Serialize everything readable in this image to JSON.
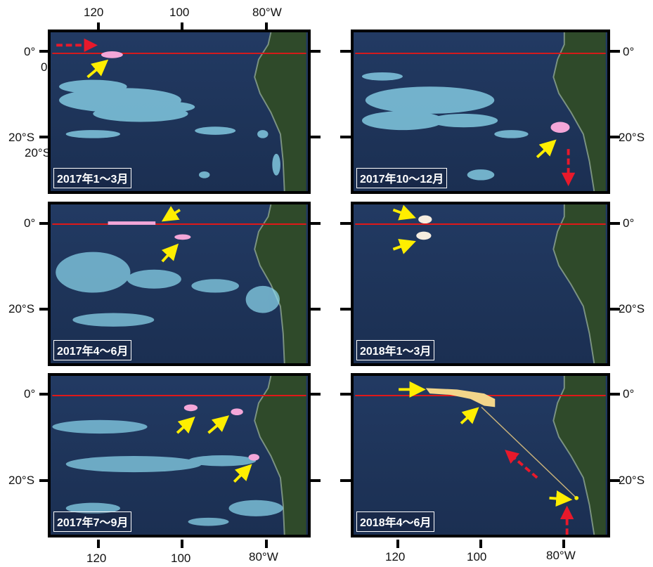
{
  "axis_labels": {
    "top": [
      "120",
      "100",
      "80°W"
    ],
    "bottom_left": [
      "120",
      "100",
      "80°W"
    ],
    "bottom_right": [
      "120",
      "100",
      "80°W"
    ],
    "left": [
      "0°",
      "0",
      "20°S",
      "20°S",
      "0°",
      "20°S",
      "0°",
      "20°S"
    ],
    "right": [
      "0°",
      "20°S",
      "0°",
      "20°S",
      "0°",
      "20°S"
    ]
  },
  "panels": [
    {
      "label": "2017年1～3月"
    },
    {
      "label": "2017年10～12月"
    },
    {
      "label": "2017年4～6月"
    },
    {
      "label": "2018年1～3月"
    },
    {
      "label": "2017年7～9月"
    },
    {
      "label": "2018年4～6月"
    }
  ],
  "colors": {
    "ocean": "#1f3559",
    "land": "#2f4a2a",
    "equator_line": "#e01818",
    "bloom": "#8fdcf2",
    "target_arrow": "#ffee00",
    "drift_arrow": "#e8192b",
    "tracked_patch_2018": "#f2d58a",
    "tracked_patch_2017": "#f3a6d8"
  }
}
